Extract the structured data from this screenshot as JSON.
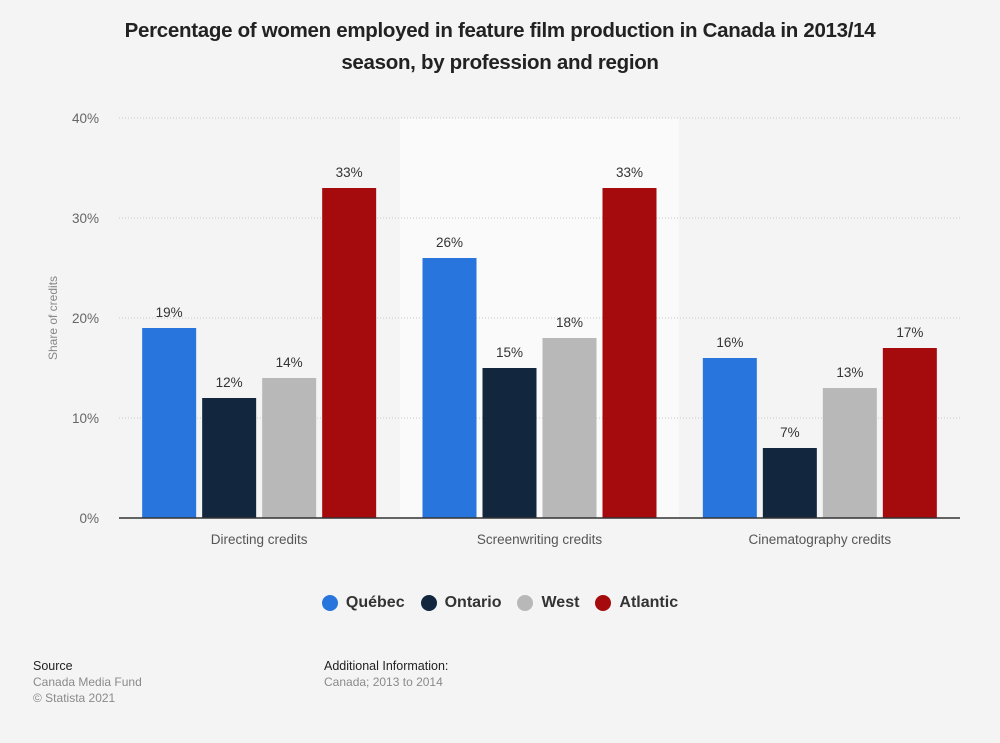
{
  "chart_data": {
    "type": "bar",
    "title": "Percentage of women employed in feature film production in Canada in 2013/14 season, by profession and region",
    "xlabel": "",
    "ylabel": "Share of credits",
    "ylim": [
      0,
      40
    ],
    "yticks": [
      0,
      10,
      20,
      30,
      40
    ],
    "ytick_labels": [
      "0%",
      "10%",
      "20%",
      "30%",
      "40%"
    ],
    "categories": [
      "Directing credits",
      "Screenwriting credits",
      "Cinematography credits"
    ],
    "highlighted_category": "Screenwriting credits",
    "series": [
      {
        "name": "Québec",
        "color": "#2876dd",
        "values": [
          19,
          26,
          16
        ],
        "labels": [
          "19%",
          "26%",
          "16%"
        ]
      },
      {
        "name": "Ontario",
        "color": "#12263d",
        "values": [
          12,
          15,
          7
        ],
        "labels": [
          "12%",
          "15%",
          "7%"
        ]
      },
      {
        "name": "West",
        "color": "#b8b8b8",
        "values": [
          14,
          18,
          13
        ],
        "labels": [
          "14%",
          "18%",
          "13%"
        ]
      },
      {
        "name": "Atlantic",
        "color": "#a50b0c",
        "values": [
          33,
          33,
          17
        ],
        "labels": [
          "33%",
          "33%",
          "17%"
        ]
      }
    ],
    "grid": true,
    "legend_position": "bottom-center"
  },
  "title_line1": "Percentage of women employed in feature film production in Canada in 2013/14",
  "title_line2": "season, by profession and region",
  "footer": {
    "source_heading": "Source",
    "source_name": "Canada Media Fund",
    "copyright": "© Statista 2021",
    "additional_heading": "Additional Information:",
    "additional_text": "Canada; 2013 to 2014"
  }
}
